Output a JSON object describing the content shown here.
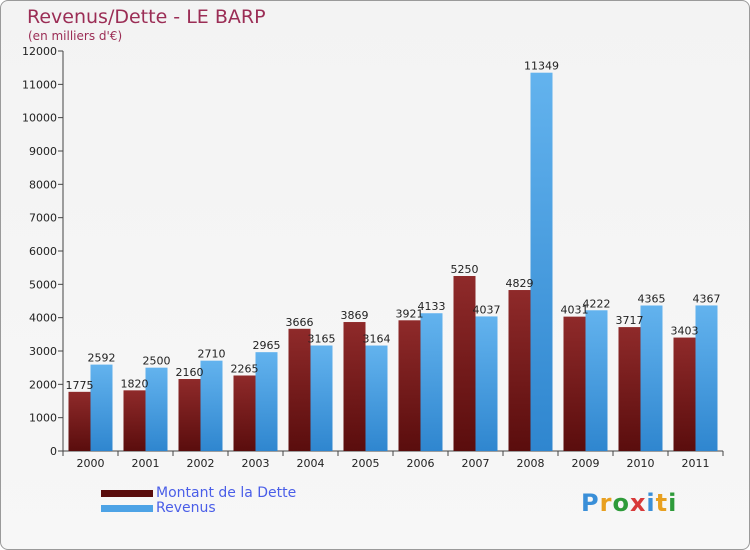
{
  "title": "Revenus/Dette - LE BARP",
  "subtitle": "(en milliers d'€)",
  "logo": {
    "letters": [
      "P",
      "r",
      "o",
      "x",
      "i",
      "t",
      "i"
    ],
    "colors": [
      "#3a8fd8",
      "#e8a020",
      "#2e9b3a",
      "#d83a3a",
      "#3a8fd8",
      "#e8a020",
      "#2e9b3a"
    ]
  },
  "colors": {
    "dette": "#7a1c1c",
    "revenus": "#4da3e6"
  },
  "chart_data": {
    "type": "bar",
    "categories": [
      "2000",
      "2001",
      "2002",
      "2003",
      "2004",
      "2005",
      "2006",
      "2007",
      "2008",
      "2009",
      "2010",
      "2011"
    ],
    "series": [
      {
        "name": "Montant de la Dette",
        "values": [
          1775,
          1820,
          2160,
          2265,
          3666,
          3869,
          3921,
          5250,
          4829,
          4031,
          3717,
          3403
        ]
      },
      {
        "name": "Revenus",
        "values": [
          2592,
          2500,
          2710,
          2965,
          3165,
          3164,
          4133,
          4037,
          11349,
          4222,
          4365,
          4367
        ]
      }
    ],
    "ylim": [
      0,
      12000
    ],
    "yticks": [
      0,
      1000,
      2000,
      3000,
      4000,
      5000,
      6000,
      7000,
      8000,
      9000,
      10000,
      11000,
      12000
    ],
    "grid": false,
    "legend_position": "bottom-left"
  }
}
